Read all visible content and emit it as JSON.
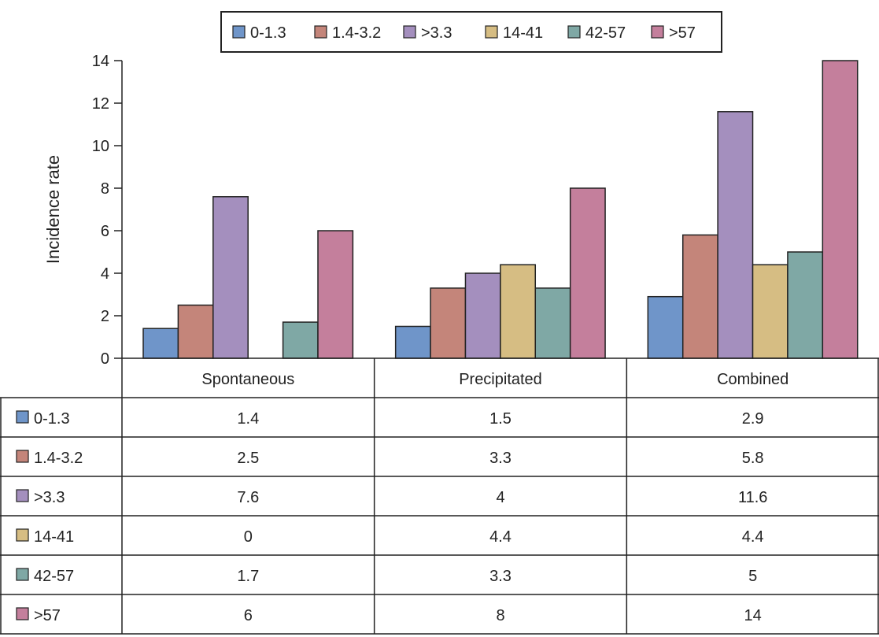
{
  "chart_data": {
    "type": "bar",
    "ylabel": "Incidence rate",
    "ylim": [
      0,
      14
    ],
    "yticks": [
      0,
      2,
      4,
      6,
      8,
      10,
      12,
      14
    ],
    "legend_position": "top-center",
    "grid": false,
    "categories": [
      "Spontaneous",
      "Precipitated",
      "Combined"
    ],
    "series": [
      {
        "name": "0-1.3",
        "color": "#6f95c9",
        "values": [
          1.4,
          1.5,
          2.9
        ],
        "labels": [
          "1.4",
          "1.5",
          "2.9"
        ]
      },
      {
        "name": "1.4-3.2",
        "color": "#c4857a",
        "values": [
          2.5,
          3.3,
          5.8
        ],
        "labels": [
          "2.5",
          "3.3",
          "5.8"
        ]
      },
      {
        "name": ">3.3",
        "color": "#a48fbe",
        "values": [
          7.6,
          4,
          11.6
        ],
        "labels": [
          "7.6",
          "4",
          "11.6"
        ]
      },
      {
        "name": "14-41",
        "color": "#d6bd83",
        "values": [
          0,
          4.4,
          4.4
        ],
        "labels": [
          "0",
          "4.4",
          "4.4"
        ]
      },
      {
        "name": "42-57",
        "color": "#7fa8a5",
        "values": [
          1.7,
          3.3,
          5
        ],
        "labels": [
          "1.7",
          "3.3",
          "5"
        ]
      },
      {
        "name": ">57",
        "color": "#c47f9c",
        "values": [
          6,
          8,
          14
        ],
        "labels": [
          "6",
          "8",
          "14"
        ]
      }
    ]
  }
}
